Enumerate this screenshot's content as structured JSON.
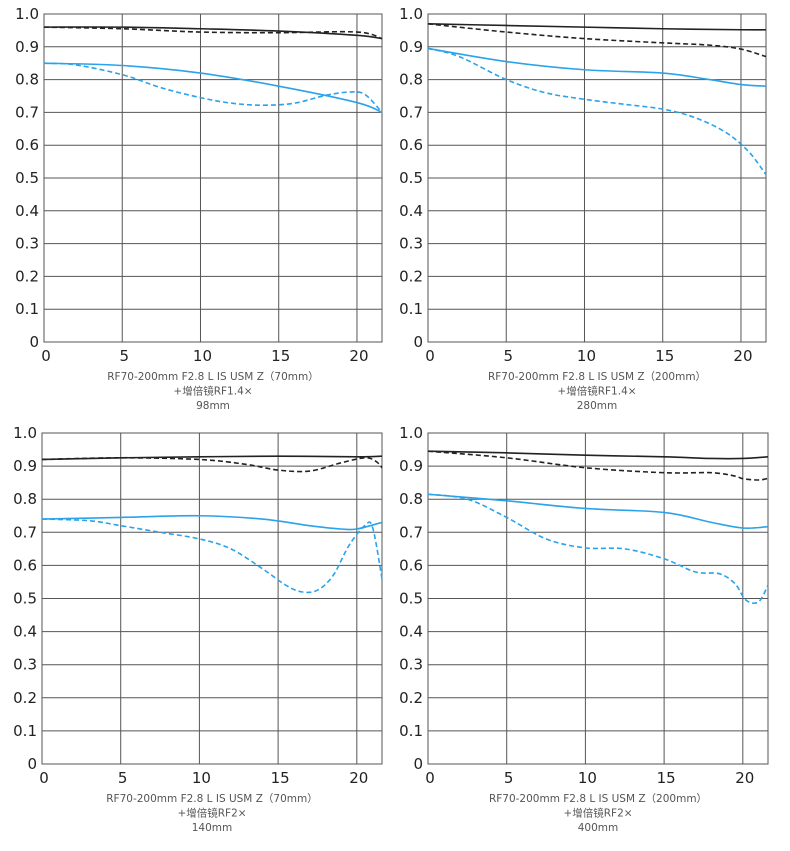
{
  "colors": {
    "black": "#222222",
    "blue": "#2aa3ea",
    "grid": "#555555"
  },
  "chart_data": [
    {
      "type": "line",
      "caption": [
        "RF70-200mm F2.8 L IS USM Z（70mm）",
        "+增倍镜RF1.4×",
        "98mm"
      ],
      "xlim": [
        0,
        21.6
      ],
      "ylim": [
        0,
        1.0
      ],
      "xticks": [
        "0",
        "5",
        "10",
        "15",
        "20"
      ],
      "yticks": [
        "0",
        "0.1",
        "0.2",
        "0.3",
        "0.4",
        "0.5",
        "0.6",
        "0.7",
        "0.8",
        "0.9",
        "1.0"
      ],
      "grid": true,
      "series": [
        {
          "color": "black",
          "style": "solid",
          "points": [
            [
              0,
              0.96
            ],
            [
              5,
              0.96
            ],
            [
              10,
              0.955
            ],
            [
              15,
              0.948
            ],
            [
              20,
              0.935
            ],
            [
              21.6,
              0.925
            ]
          ]
        },
        {
          "color": "black",
          "style": "dashed",
          "points": [
            [
              0,
              0.96
            ],
            [
              5,
              0.955
            ],
            [
              10,
              0.945
            ],
            [
              15,
              0.943
            ],
            [
              20,
              0.945
            ],
            [
              21.6,
              0.925
            ]
          ]
        },
        {
          "color": "blue",
          "style": "solid",
          "points": [
            [
              0,
              0.85
            ],
            [
              5,
              0.843
            ],
            [
              10,
              0.82
            ],
            [
              15,
              0.78
            ],
            [
              20,
              0.73
            ],
            [
              21.6,
              0.7
            ]
          ]
        },
        {
          "color": "blue",
          "style": "dashed",
          "points": [
            [
              0,
              0.85
            ],
            [
              2,
              0.845
            ],
            [
              5,
              0.815
            ],
            [
              7.5,
              0.775
            ],
            [
              10,
              0.745
            ],
            [
              12,
              0.728
            ],
            [
              14,
              0.722
            ],
            [
              16,
              0.728
            ],
            [
              18,
              0.752
            ],
            [
              19.5,
              0.762
            ],
            [
              20.5,
              0.755
            ],
            [
              21.6,
              0.7
            ]
          ]
        }
      ]
    },
    {
      "type": "line",
      "caption": [
        "RF70-200mm F2.8 L IS USM Z（200mm）",
        "+增倍镜RF1.4×",
        "280mm"
      ],
      "xlim": [
        0,
        21.6
      ],
      "ylim": [
        0,
        1.0
      ],
      "xticks": [
        "0",
        "5",
        "10",
        "15",
        "20"
      ],
      "yticks": [
        "0",
        "0.1",
        "0.2",
        "0.3",
        "0.4",
        "0.5",
        "0.6",
        "0.7",
        "0.8",
        "0.9",
        "1.0"
      ],
      "grid": true,
      "series": [
        {
          "color": "black",
          "style": "solid",
          "points": [
            [
              0,
              0.97
            ],
            [
              5,
              0.965
            ],
            [
              10,
              0.96
            ],
            [
              15,
              0.955
            ],
            [
              20,
              0.952
            ],
            [
              21.6,
              0.952
            ]
          ]
        },
        {
          "color": "black",
          "style": "dashed",
          "points": [
            [
              0,
              0.97
            ],
            [
              5,
              0.945
            ],
            [
              10,
              0.925
            ],
            [
              15,
              0.912
            ],
            [
              18,
              0.905
            ],
            [
              20,
              0.893
            ],
            [
              21.6,
              0.87
            ]
          ]
        },
        {
          "color": "blue",
          "style": "solid",
          "points": [
            [
              0,
              0.895
            ],
            [
              5,
              0.855
            ],
            [
              10,
              0.83
            ],
            [
              15,
              0.82
            ],
            [
              18,
              0.8
            ],
            [
              20,
              0.785
            ],
            [
              21.6,
              0.78
            ]
          ]
        },
        {
          "color": "blue",
          "style": "dashed",
          "points": [
            [
              0,
              0.895
            ],
            [
              2,
              0.87
            ],
            [
              5,
              0.8
            ],
            [
              7.5,
              0.76
            ],
            [
              10,
              0.74
            ],
            [
              12.5,
              0.725
            ],
            [
              15,
              0.71
            ],
            [
              17,
              0.685
            ],
            [
              19,
              0.64
            ],
            [
              20.5,
              0.58
            ],
            [
              21.6,
              0.51
            ]
          ]
        }
      ]
    },
    {
      "type": "line",
      "caption": [
        "RF70-200mm F2.8 L IS USM Z（70mm）",
        "+增倍镜RF2×",
        "140mm"
      ],
      "xlim": [
        0,
        21.6
      ],
      "ylim": [
        0,
        1.0
      ],
      "xticks": [
        "0",
        "5",
        "10",
        "15",
        "20"
      ],
      "yticks": [
        "0",
        "0.1",
        "0.2",
        "0.3",
        "0.4",
        "0.5",
        "0.6",
        "0.7",
        "0.8",
        "0.9",
        "1.0"
      ],
      "grid": true,
      "series": [
        {
          "color": "black",
          "style": "solid",
          "points": [
            [
              0,
              0.92
            ],
            [
              5,
              0.925
            ],
            [
              10,
              0.928
            ],
            [
              15,
              0.93
            ],
            [
              20,
              0.928
            ],
            [
              21.6,
              0.93
            ]
          ]
        },
        {
          "color": "black",
          "style": "dashed",
          "points": [
            [
              0,
              0.92
            ],
            [
              5,
              0.925
            ],
            [
              10,
              0.92
            ],
            [
              13,
              0.905
            ],
            [
              15,
              0.888
            ],
            [
              17,
              0.885
            ],
            [
              19,
              0.91
            ],
            [
              20.5,
              0.925
            ],
            [
              21.2,
              0.915
            ],
            [
              21.6,
              0.895
            ]
          ]
        },
        {
          "color": "blue",
          "style": "solid",
          "points": [
            [
              0,
              0.74
            ],
            [
              5,
              0.745
            ],
            [
              10,
              0.75
            ],
            [
              14,
              0.74
            ],
            [
              17,
              0.72
            ],
            [
              19,
              0.71
            ],
            [
              20,
              0.71
            ],
            [
              21.6,
              0.73
            ]
          ]
        },
        {
          "color": "blue",
          "style": "dashed",
          "points": [
            [
              0,
              0.74
            ],
            [
              3,
              0.735
            ],
            [
              5,
              0.72
            ],
            [
              7.5,
              0.7
            ],
            [
              10,
              0.68
            ],
            [
              12,
              0.65
            ],
            [
              14,
              0.59
            ],
            [
              15.5,
              0.54
            ],
            [
              16.5,
              0.52
            ],
            [
              17.5,
              0.525
            ],
            [
              18.5,
              0.57
            ],
            [
              19.5,
              0.66
            ],
            [
              20.5,
              0.72
            ],
            [
              21,
              0.715
            ],
            [
              21.6,
              0.56
            ]
          ]
        }
      ]
    },
    {
      "type": "line",
      "caption": [
        "RF70-200mm F2.8 L IS USM Z（200mm）",
        "+增倍镜RF2×",
        "400mm"
      ],
      "xlim": [
        0,
        21.6
      ],
      "ylim": [
        0,
        1.0
      ],
      "xticks": [
        "0",
        "5",
        "10",
        "15",
        "20"
      ],
      "yticks": [
        "0",
        "0.1",
        "0.2",
        "0.3",
        "0.4",
        "0.5",
        "0.6",
        "0.7",
        "0.8",
        "0.9",
        "1.0"
      ],
      "grid": true,
      "series": [
        {
          "color": "black",
          "style": "solid",
          "points": [
            [
              0,
              0.945
            ],
            [
              5,
              0.94
            ],
            [
              10,
              0.933
            ],
            [
              15,
              0.928
            ],
            [
              18,
              0.923
            ],
            [
              20,
              0.923
            ],
            [
              21.6,
              0.928
            ]
          ]
        },
        {
          "color": "black",
          "style": "dashed",
          "points": [
            [
              0,
              0.945
            ],
            [
              5,
              0.925
            ],
            [
              10,
              0.895
            ],
            [
              15,
              0.88
            ],
            [
              18,
              0.88
            ],
            [
              19.5,
              0.87
            ],
            [
              20,
              0.862
            ],
            [
              21,
              0.858
            ],
            [
              21.6,
              0.863
            ]
          ]
        },
        {
          "color": "blue",
          "style": "solid",
          "points": [
            [
              0,
              0.815
            ],
            [
              5,
              0.795
            ],
            [
              10,
              0.772
            ],
            [
              15,
              0.76
            ],
            [
              18,
              0.73
            ],
            [
              20,
              0.713
            ],
            [
              21.6,
              0.717
            ]
          ]
        },
        {
          "color": "blue",
          "style": "dashed",
          "points": [
            [
              0,
              0.815
            ],
            [
              2.5,
              0.8
            ],
            [
              5,
              0.745
            ],
            [
              7.5,
              0.68
            ],
            [
              10,
              0.653
            ],
            [
              12.5,
              0.65
            ],
            [
              15,
              0.62
            ],
            [
              17,
              0.58
            ],
            [
              18.5,
              0.575
            ],
            [
              19.5,
              0.545
            ],
            [
              20.2,
              0.495
            ],
            [
              21,
              0.49
            ],
            [
              21.6,
              0.54
            ]
          ]
        }
      ]
    }
  ]
}
